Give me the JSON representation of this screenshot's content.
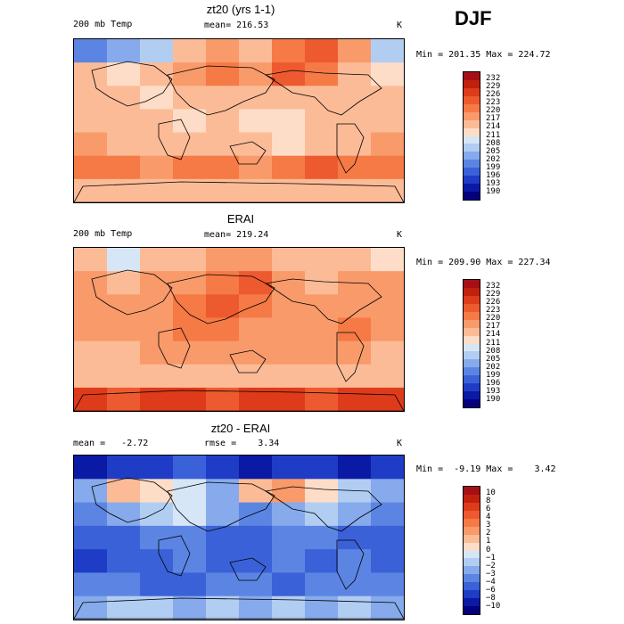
{
  "season": "DJF",
  "panels": [
    {
      "title": "zt20 (yrs 1-1)",
      "left_label": "200 mb Temp",
      "center_label": "mean= 216.53",
      "units": "K",
      "min_label": "Min = 201.35",
      "max_label": "Max = 224.72",
      "colorbar_labels": [
        "232",
        "229",
        "226",
        "223",
        "220",
        "217",
        "214",
        "211",
        "208",
        "205",
        "202",
        "199",
        "196",
        "193",
        "190"
      ],
      "colorbar_colors": [
        "#a50f15",
        "#c2200f",
        "#de3b1a",
        "#ee5a2f",
        "#f57a45",
        "#f99a6a",
        "#fcbb97",
        "#fdddc7",
        "#d6e6f7",
        "#b2cdf2",
        "#86aaeb",
        "#5c85e3",
        "#3b61d8",
        "#1f3cc7",
        "#0a1aa5",
        "#03027c"
      ],
      "map_rows": [
        [
          "#5c85e3",
          "#86aaeb",
          "#b2cdf2",
          "#fcbb97",
          "#f99a6a",
          "#fcbb97",
          "#f57a45",
          "#ee5a2f",
          "#f99a6a",
          "#b2cdf2"
        ],
        [
          "#fcbb97",
          "#fdddc7",
          "#fcbb97",
          "#f99a6a",
          "#f57a45",
          "#f99a6a",
          "#ee5a2f",
          "#f57a45",
          "#fcbb97",
          "#fdddc7"
        ],
        [
          "#fcbb97",
          "#fcbb97",
          "#fdddc7",
          "#fcbb97",
          "#fcbb97",
          "#fcbb97",
          "#fcbb97",
          "#fcbb97",
          "#fcbb97",
          "#fcbb97"
        ],
        [
          "#fcbb97",
          "#fcbb97",
          "#fcbb97",
          "#fdddc7",
          "#fcbb97",
          "#fdddc7",
          "#fdddc7",
          "#fcbb97",
          "#fcbb97",
          "#fcbb97"
        ],
        [
          "#f99a6a",
          "#fcbb97",
          "#fcbb97",
          "#fcbb97",
          "#fcbb97",
          "#fcbb97",
          "#fdddc7",
          "#fcbb97",
          "#fcbb97",
          "#f99a6a"
        ],
        [
          "#f57a45",
          "#f57a45",
          "#f99a6a",
          "#f57a45",
          "#f57a45",
          "#f99a6a",
          "#f57a45",
          "#ee5a2f",
          "#f57a45",
          "#f57a45"
        ],
        [
          "#fcbb97",
          "#fcbb97",
          "#fcbb97",
          "#fcbb97",
          "#fcbb97",
          "#fcbb97",
          "#fcbb97",
          "#fcbb97",
          "#fcbb97",
          "#fcbb97"
        ]
      ]
    },
    {
      "title": "ERAI",
      "left_label": "200 mb Temp",
      "center_label": "mean= 219.24",
      "units": "K",
      "min_label": "Min = 209.90",
      "max_label": "Max = 227.34",
      "colorbar_labels": [
        "232",
        "229",
        "226",
        "223",
        "220",
        "217",
        "214",
        "211",
        "208",
        "205",
        "202",
        "199",
        "196",
        "193",
        "190"
      ],
      "colorbar_colors": [
        "#a50f15",
        "#c2200f",
        "#de3b1a",
        "#ee5a2f",
        "#f57a45",
        "#f99a6a",
        "#fcbb97",
        "#fdddc7",
        "#d6e6f7",
        "#b2cdf2",
        "#86aaeb",
        "#5c85e3",
        "#3b61d8",
        "#1f3cc7",
        "#0a1aa5",
        "#03027c"
      ],
      "map_rows": [
        [
          "#fcbb97",
          "#d6e6f7",
          "#fcbb97",
          "#fcbb97",
          "#f99a6a",
          "#f99a6a",
          "#fcbb97",
          "#fcbb97",
          "#fcbb97",
          "#fdddc7"
        ],
        [
          "#f99a6a",
          "#fcbb97",
          "#f99a6a",
          "#f99a6a",
          "#f57a45",
          "#ee5a2f",
          "#f99a6a",
          "#fcbb97",
          "#f99a6a",
          "#f99a6a"
        ],
        [
          "#f99a6a",
          "#f99a6a",
          "#f99a6a",
          "#f57a45",
          "#ee5a2f",
          "#f57a45",
          "#f99a6a",
          "#f99a6a",
          "#f99a6a",
          "#f99a6a"
        ],
        [
          "#f99a6a",
          "#f99a6a",
          "#f99a6a",
          "#f57a45",
          "#f57a45",
          "#f99a6a",
          "#f99a6a",
          "#f99a6a",
          "#f57a45",
          "#f99a6a"
        ],
        [
          "#fcbb97",
          "#fcbb97",
          "#f99a6a",
          "#f99a6a",
          "#f99a6a",
          "#f99a6a",
          "#f99a6a",
          "#f99a6a",
          "#f99a6a",
          "#fcbb97"
        ],
        [
          "#fcbb97",
          "#fcbb97",
          "#fcbb97",
          "#fcbb97",
          "#fcbb97",
          "#fcbb97",
          "#fcbb97",
          "#fcbb97",
          "#fcbb97",
          "#fcbb97"
        ],
        [
          "#de3b1a",
          "#ee5a2f",
          "#de3b1a",
          "#de3b1a",
          "#ee5a2f",
          "#de3b1a",
          "#de3b1a",
          "#ee5a2f",
          "#de3b1a",
          "#de3b1a"
        ]
      ]
    },
    {
      "title": "zt20 - ERAI",
      "left_label": "mean =   -2.72",
      "center_label": "rmse =    3.34",
      "units": "K",
      "min_label": "Min =  -9.19",
      "max_label": "Max =    3.42",
      "colorbar_labels": [
        "10",
        "8",
        "6",
        "4",
        "3",
        "2",
        "1",
        "0",
        "−1",
        "−2",
        "−3",
        "−4",
        "−6",
        "−8",
        "−10"
      ],
      "colorbar_colors": [
        "#a50f15",
        "#c2200f",
        "#de3b1a",
        "#ee5a2f",
        "#f57a45",
        "#f99a6a",
        "#fcbb97",
        "#fdddc7",
        "#d6e6f7",
        "#b2cdf2",
        "#86aaeb",
        "#5c85e3",
        "#3b61d8",
        "#1f3cc7",
        "#0a1aa5",
        "#03027c"
      ],
      "map_rows": [
        [
          "#0a1aa5",
          "#1f3cc7",
          "#1f3cc7",
          "#3b61d8",
          "#1f3cc7",
          "#0a1aa5",
          "#1f3cc7",
          "#1f3cc7",
          "#0a1aa5",
          "#1f3cc7"
        ],
        [
          "#86aaeb",
          "#fcbb97",
          "#fdddc7",
          "#d6e6f7",
          "#86aaeb",
          "#fcbb97",
          "#f99a6a",
          "#fdddc7",
          "#b2cdf2",
          "#86aaeb"
        ],
        [
          "#5c85e3",
          "#86aaeb",
          "#b2cdf2",
          "#d6e6f7",
          "#86aaeb",
          "#5c85e3",
          "#86aaeb",
          "#b2cdf2",
          "#86aaeb",
          "#5c85e3"
        ],
        [
          "#3b61d8",
          "#3b61d8",
          "#5c85e3",
          "#5c85e3",
          "#3b61d8",
          "#3b61d8",
          "#5c85e3",
          "#5c85e3",
          "#3b61d8",
          "#3b61d8"
        ],
        [
          "#1f3cc7",
          "#3b61d8",
          "#3b61d8",
          "#5c85e3",
          "#3b61d8",
          "#3b61d8",
          "#5c85e3",
          "#3b61d8",
          "#5c85e3",
          "#3b61d8"
        ],
        [
          "#5c85e3",
          "#5c85e3",
          "#3b61d8",
          "#3b61d8",
          "#5c85e3",
          "#5c85e3",
          "#3b61d8",
          "#5c85e3",
          "#5c85e3",
          "#5c85e3"
        ],
        [
          "#86aaeb",
          "#b2cdf2",
          "#b2cdf2",
          "#86aaeb",
          "#b2cdf2",
          "#86aaeb",
          "#b2cdf2",
          "#86aaeb",
          "#b2cdf2",
          "#86aaeb"
        ]
      ]
    }
  ]
}
